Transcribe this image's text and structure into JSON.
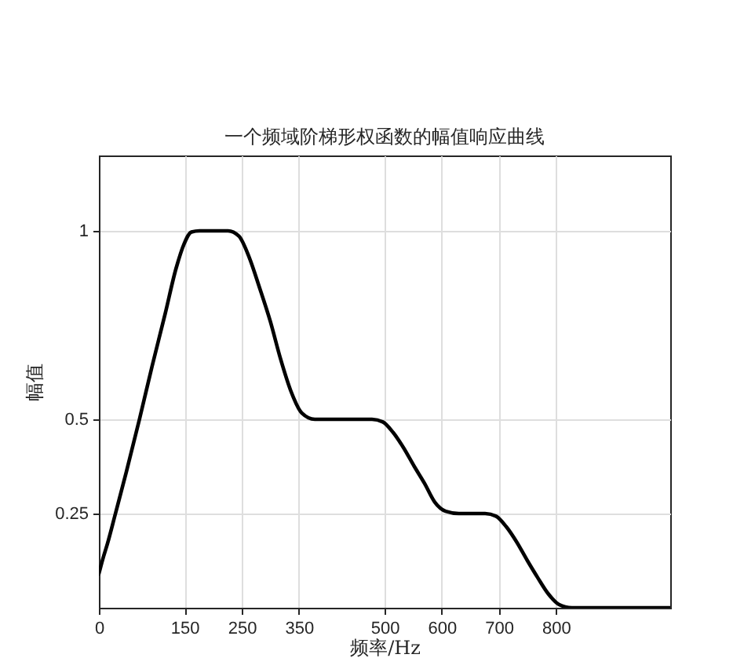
{
  "chart_data": {
    "type": "line",
    "title": "一个频域阶梯形权函数的幅值响应曲线",
    "xlabel": "频率/Hz",
    "ylabel": "幅值",
    "x": [
      0,
      7,
      15,
      29,
      48,
      71,
      93,
      116,
      135,
      149,
      162,
      176,
      200,
      226,
      245,
      263,
      281,
      300,
      318,
      336,
      355,
      378,
      420,
      478,
      497,
      515,
      533,
      552,
      570,
      588,
      607,
      630,
      655,
      676,
      695,
      713,
      731,
      750,
      768,
      786,
      805,
      828,
      900,
      1000
    ],
    "values": [
      0.09,
      0.13,
      0.17,
      0.25,
      0.36,
      0.5,
      0.64,
      0.78,
      0.9,
      0.965,
      0.997,
      1,
      1,
      1,
      0.986,
      0.93,
      0.85,
      0.76,
      0.66,
      0.575,
      0.517,
      0.5,
      0.5,
      0.5,
      0.493,
      0.465,
      0.425,
      0.375,
      0.33,
      0.28,
      0.256,
      0.25,
      0.25,
      0.25,
      0.243,
      0.215,
      0.175,
      0.125,
      0.08,
      0.038,
      0.009,
      0,
      0,
      0
    ],
    "color": "#000000",
    "xlim": [
      0,
      1000
    ],
    "ylim": [
      0,
      1.2
    ],
    "xticks": [
      0,
      150,
      250,
      350,
      500,
      600,
      700,
      800
    ],
    "yticks": [
      0.25,
      0.5,
      1
    ],
    "grid": true
  }
}
